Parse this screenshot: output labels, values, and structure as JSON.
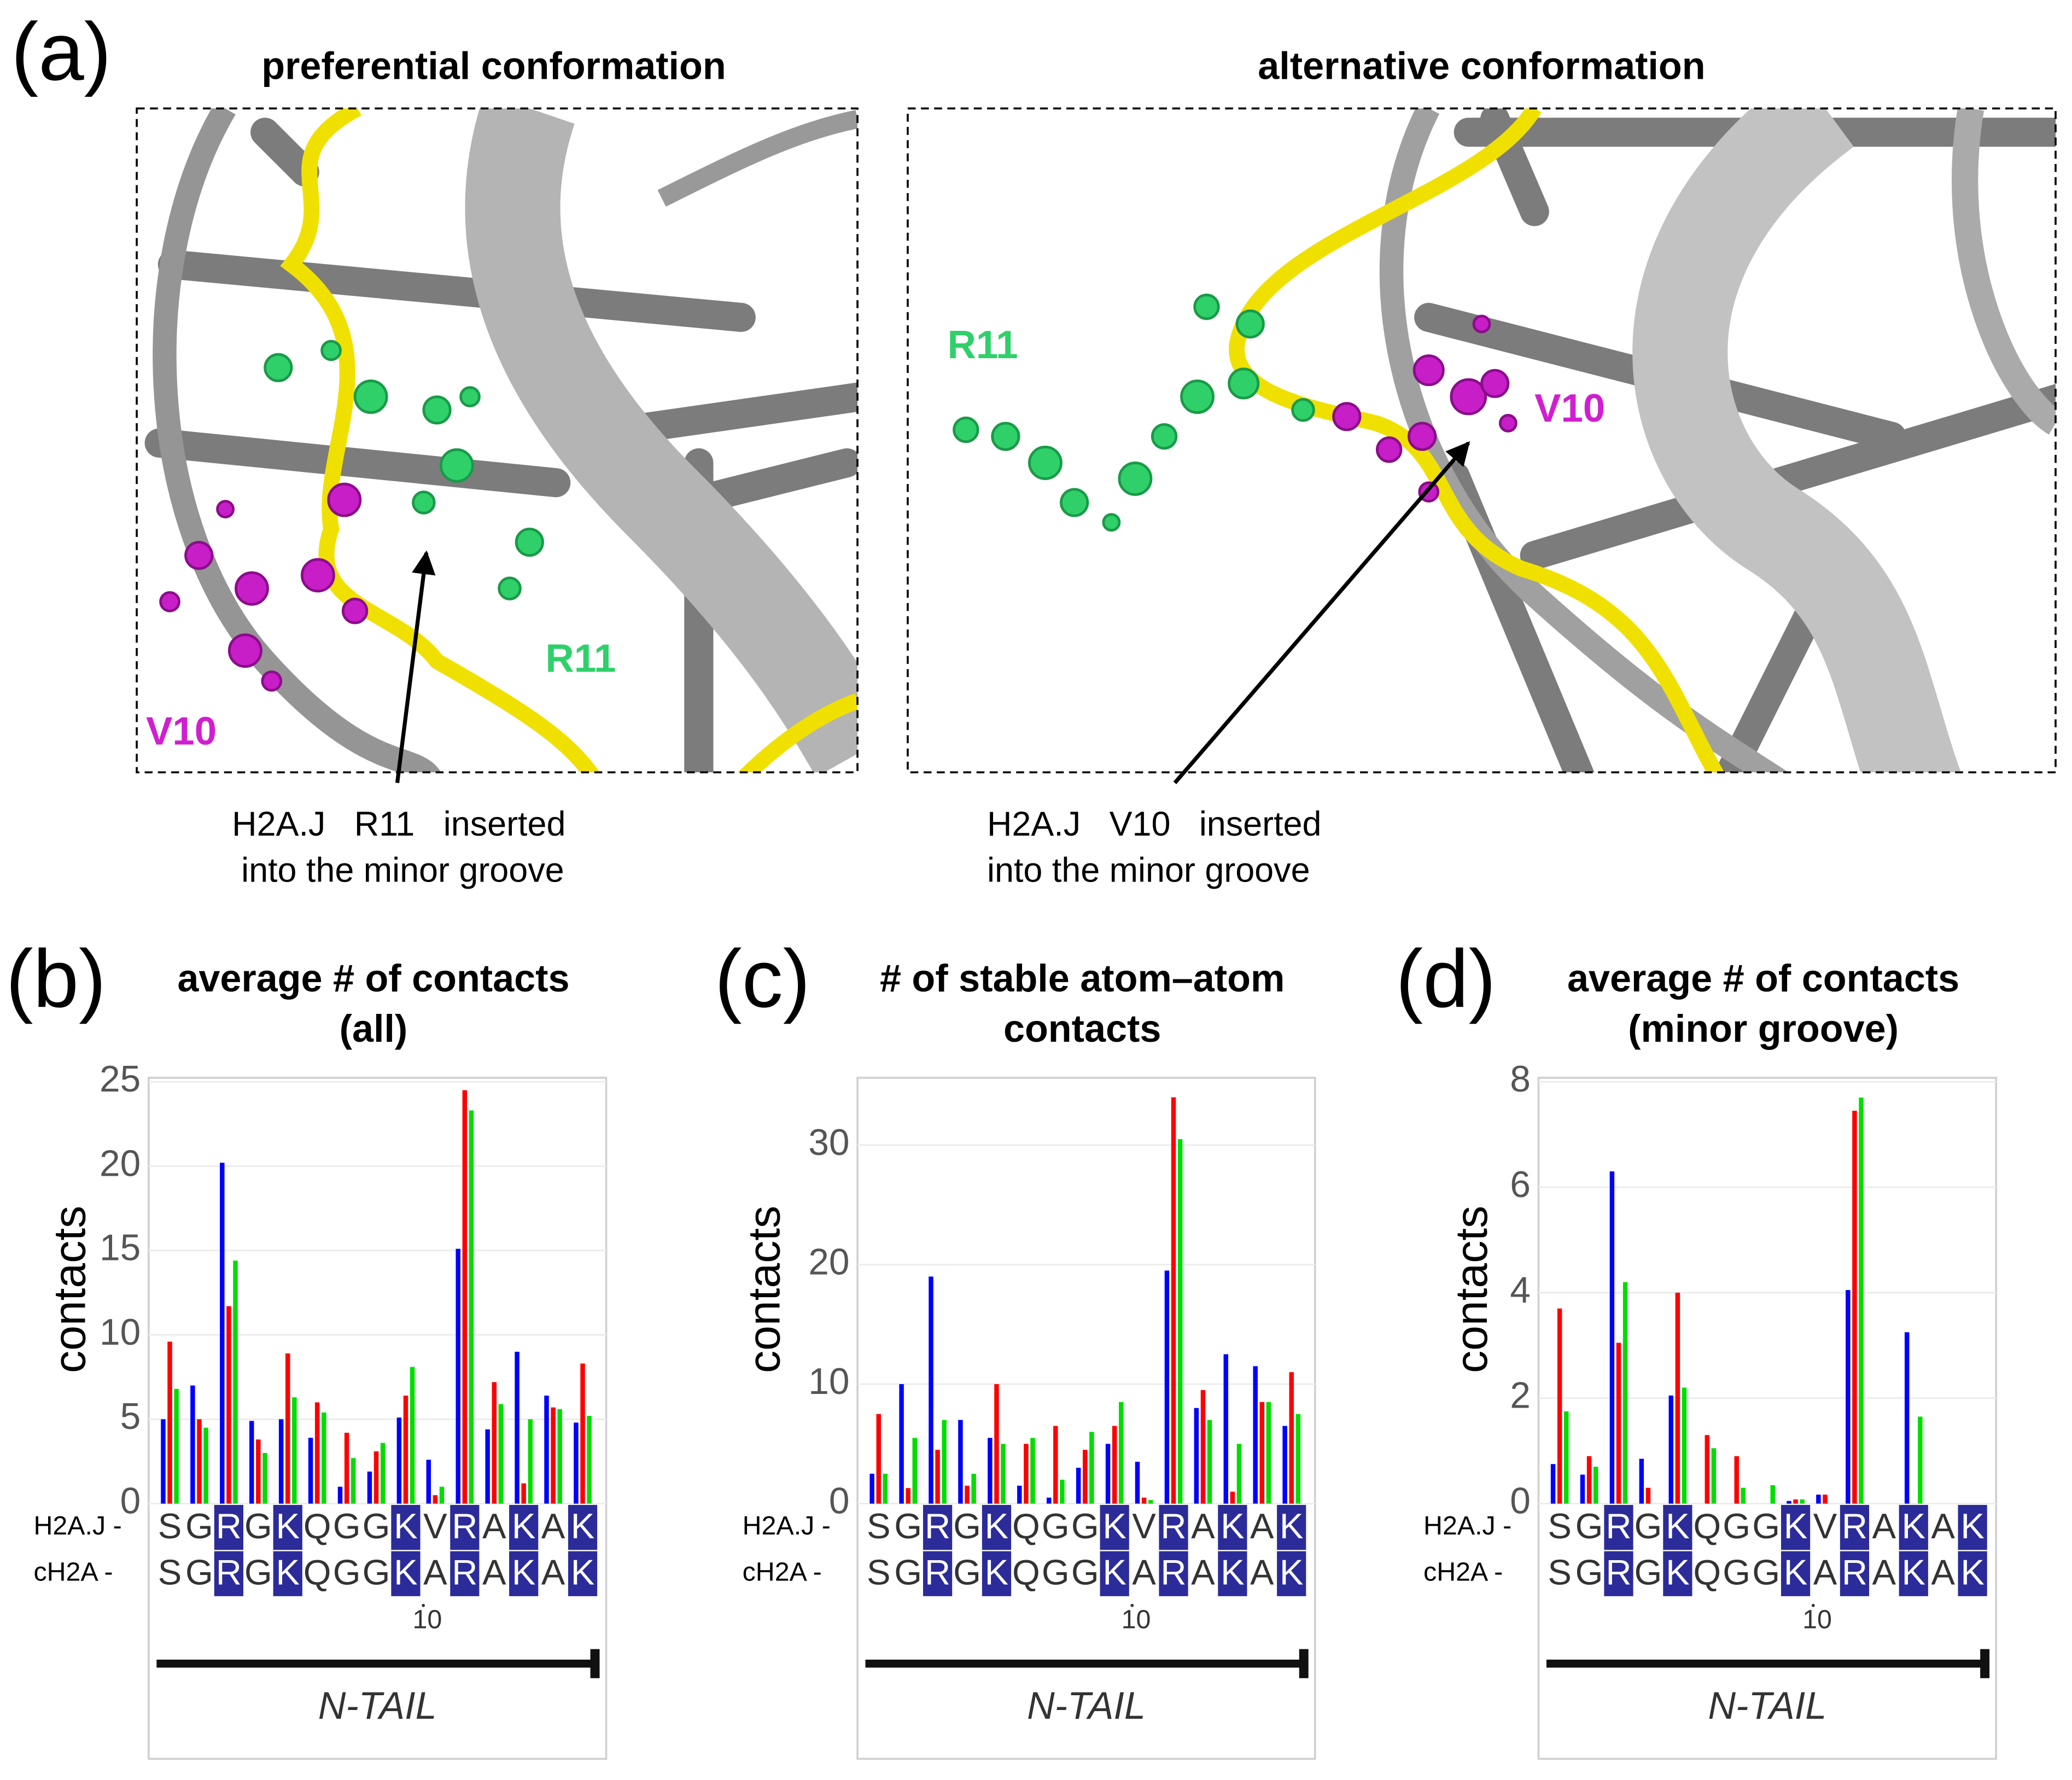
{
  "panel_a": {
    "label": "(a)",
    "left": {
      "title": "preferential conformation",
      "residue_1": "V10",
      "residue_2": "R11",
      "caption": [
        "H2A.J   R11   inserted",
        "into the minor groove"
      ]
    },
    "right": {
      "title": "alternative conformation",
      "residue_1": "R11",
      "residue_2": "V10",
      "caption": [
        "H2A.J   V10   inserted",
        "into the minor groove"
      ]
    }
  },
  "alignment": {
    "rows": [
      {
        "name": "H2A.J -",
        "sequence": [
          "S",
          "G",
          "R",
          "G",
          "K",
          "Q",
          "G",
          "G",
          "K",
          "V",
          "R",
          "A",
          "K",
          "A",
          "K"
        ],
        "highlight": [
          2,
          4,
          8,
          10,
          12,
          14
        ]
      },
      {
        "name": "cH2A -",
        "sequence": [
          "S",
          "G",
          "R",
          "G",
          "K",
          "Q",
          "G",
          "G",
          "K",
          "A",
          "R",
          "A",
          "K",
          "A",
          "K"
        ],
        "highlight": [
          2,
          4,
          8,
          10,
          12,
          14
        ]
      }
    ],
    "position_label": 10,
    "region": "N-TAIL"
  },
  "chart_data": [
    {
      "type": "bar",
      "panel_label": "(b)",
      "title": [
        "average # of contacts",
        "(all)"
      ],
      "ylabel": "contacts",
      "ylim": [
        0,
        25
      ],
      "yticks": [
        0,
        5,
        10,
        15,
        20,
        25
      ],
      "grid": true,
      "series": [
        {
          "color": "#0000ff",
          "values": [
            5,
            7,
            20.2,
            4.9,
            5,
            3.9,
            1,
            1.9,
            5.1,
            2.6,
            15.1,
            4.4,
            9,
            6.4,
            4.8
          ]
        },
        {
          "color": "#ff0000",
          "values": [
            9.6,
            5,
            11.7,
            3.8,
            8.9,
            6,
            4.2,
            3.1,
            6.4,
            0.5,
            24.5,
            7.2,
            1.2,
            5.7,
            8.3
          ]
        },
        {
          "color": "#00dd00",
          "values": [
            6.8,
            4.5,
            14.4,
            3,
            6.3,
            5.4,
            2.7,
            3.6,
            8.1,
            1,
            23.3,
            5.9,
            5,
            5.6,
            5.2
          ]
        }
      ]
    },
    {
      "type": "bar",
      "panel_label": "(c)",
      "title": [
        "# of stable atom–atom",
        "contacts"
      ],
      "ylabel": "contacts",
      "ylim": [
        0,
        35.3
      ],
      "yticks": [
        0,
        10,
        20,
        30
      ],
      "grid": true,
      "series": [
        {
          "color": "#0000ff",
          "values": [
            2.5,
            10,
            19,
            7,
            5.5,
            1.5,
            0.5,
            3,
            5,
            3.5,
            19.5,
            8,
            12.5,
            11.5,
            6.5
          ]
        },
        {
          "color": "#ff0000",
          "values": [
            7.5,
            1.3,
            4.5,
            1.5,
            10,
            5,
            6.5,
            4.5,
            6.5,
            0.5,
            34,
            9.5,
            1,
            8.5,
            11
          ]
        },
        {
          "color": "#00dd00",
          "values": [
            2.5,
            5.5,
            7,
            2.5,
            5,
            5.5,
            2,
            6,
            8.5,
            0.3,
            30.5,
            7,
            5,
            8.5,
            7.5
          ]
        }
      ]
    },
    {
      "type": "bar",
      "panel_label": "(d)",
      "title": [
        "average # of contacts",
        "(minor groove)"
      ],
      "ylabel": "contacts",
      "ylim": [
        0,
        8
      ],
      "yticks": [
        0,
        2,
        4,
        6,
        8
      ],
      "grid": true,
      "series": [
        {
          "color": "#0000ff",
          "values": [
            0.75,
            0.55,
            6.3,
            0.85,
            2.05,
            0,
            0,
            0,
            0.05,
            0.17,
            4.05,
            0,
            3.25,
            0,
            0
          ]
        },
        {
          "color": "#ff0000",
          "values": [
            3.7,
            0.9,
            3.05,
            0.3,
            4,
            1.3,
            0.9,
            0,
            0.08,
            0.17,
            7.45,
            0,
            0,
            0,
            0
          ]
        },
        {
          "color": "#00dd00",
          "values": [
            1.75,
            0.7,
            4.2,
            0,
            2.2,
            1.05,
            0.3,
            0.35,
            0.08,
            0,
            7.7,
            0,
            1.65,
            0,
            0
          ]
        }
      ]
    }
  ]
}
